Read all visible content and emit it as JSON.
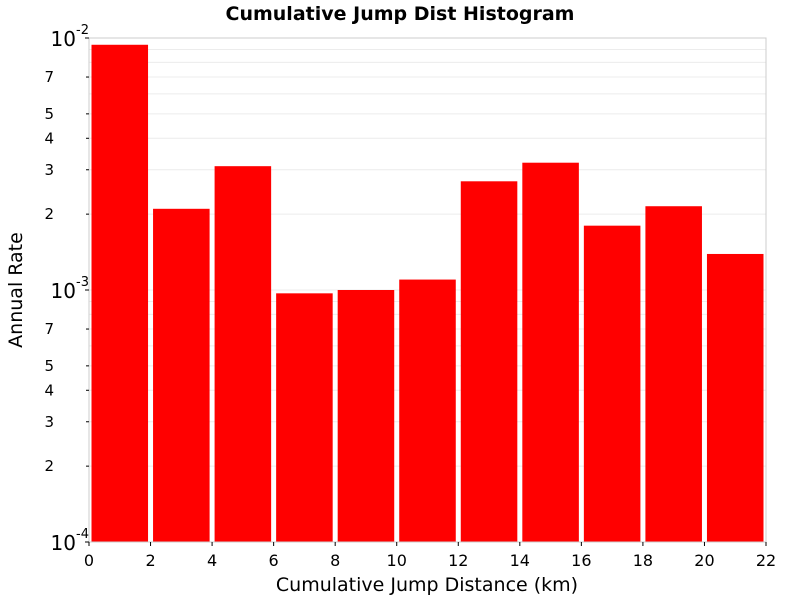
{
  "chart_data": {
    "type": "bar",
    "title": "Cumulative Jump Dist Histogram",
    "xlabel": "Cumulative Jump Distance (km)",
    "ylabel": "Annual Rate",
    "xlim": [
      0,
      22
    ],
    "ylim": [
      0.0001,
      0.01
    ],
    "yscale": "log",
    "grid": true,
    "bar_color": "#ff0000",
    "x_ticks": [
      "0",
      "2",
      "4",
      "6",
      "8",
      "10",
      "12",
      "14",
      "16",
      "18",
      "20",
      "22"
    ],
    "y_major_ticks": [
      {
        "value": 0.01,
        "base": "10",
        "exp": "-2"
      },
      {
        "value": 0.001,
        "base": "10",
        "exp": "-3"
      },
      {
        "value": 0.0001,
        "base": "10",
        "exp": "-4"
      }
    ],
    "y_minor_ticks": [
      {
        "value": 0.007,
        "label": "7"
      },
      {
        "value": 0.005,
        "label": "5"
      },
      {
        "value": 0.004,
        "label": "4"
      },
      {
        "value": 0.003,
        "label": "3"
      },
      {
        "value": 0.002,
        "label": "2"
      },
      {
        "value": 0.0007,
        "label": "7"
      },
      {
        "value": 0.0005,
        "label": "5"
      },
      {
        "value": 0.0004,
        "label": "4"
      },
      {
        "value": 0.0003,
        "label": "3"
      },
      {
        "value": 0.0002,
        "label": "2"
      }
    ],
    "bars": [
      {
        "x0": 0,
        "x1": 2,
        "value": 0.0094
      },
      {
        "x0": 2,
        "x1": 4,
        "value": 0.0021
      },
      {
        "x0": 4,
        "x1": 6,
        "value": 0.0031
      },
      {
        "x0": 6,
        "x1": 8,
        "value": 0.00097
      },
      {
        "x0": 8,
        "x1": 10,
        "value": 0.001
      },
      {
        "x0": 10,
        "x1": 12,
        "value": 0.0011
      },
      {
        "x0": 12,
        "x1": 14,
        "value": 0.0027
      },
      {
        "x0": 14,
        "x1": 16,
        "value": 0.0032
      },
      {
        "x0": 16,
        "x1": 18,
        "value": 0.0018
      },
      {
        "x0": 18,
        "x1": 20,
        "value": 0.00215
      },
      {
        "x0": 20,
        "x1": 22,
        "value": 0.00139
      }
    ]
  }
}
